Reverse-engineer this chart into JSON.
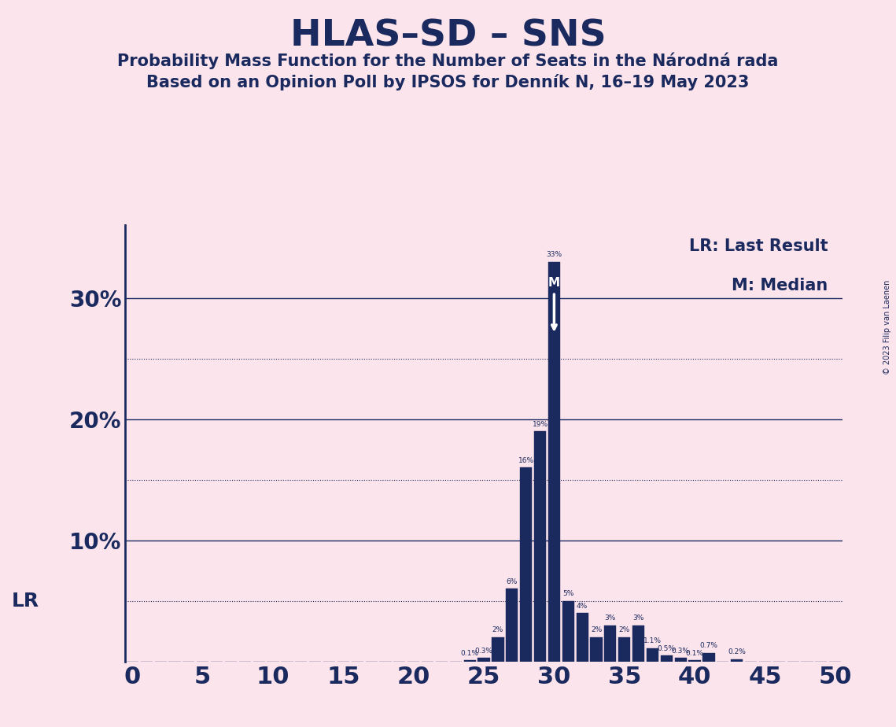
{
  "title": "HLAS–SD – SNS",
  "subtitle1": "Probability Mass Function for the Number of Seats in the Národná rada",
  "subtitle2": "Based on an Opinion Poll by IPSOS for Denník N, 16–19 May 2023",
  "copyright": "© 2023 Filip van Laenen",
  "legend_lr": "LR: Last Result",
  "legend_m": "M: Median",
  "lr_label": "LR",
  "median_seat": 30,
  "background_color": "#fce4ec",
  "bar_color": "#1a2a5e",
  "bar_edge_color": "#1a2a5e",
  "axis_color": "#1a2a5e",
  "text_color": "#1a2a5e",
  "x_min": -0.5,
  "x_max": 50.5,
  "y_min": 0,
  "y_max": 36,
  "ytick_labeled": [
    10,
    20,
    30
  ],
  "ytick_dotted": [
    5,
    15,
    25
  ],
  "xticks": [
    0,
    5,
    10,
    15,
    20,
    25,
    30,
    35,
    40,
    45,
    50
  ],
  "seats": [
    0,
    1,
    2,
    3,
    4,
    5,
    6,
    7,
    8,
    9,
    10,
    11,
    12,
    13,
    14,
    15,
    16,
    17,
    18,
    19,
    20,
    21,
    22,
    23,
    24,
    25,
    26,
    27,
    28,
    29,
    30,
    31,
    32,
    33,
    34,
    35,
    36,
    37,
    38,
    39,
    40,
    41,
    42,
    43,
    44,
    45,
    46,
    47,
    48,
    49,
    50
  ],
  "probs": [
    0,
    0,
    0,
    0,
    0,
    0,
    0,
    0,
    0,
    0,
    0,
    0,
    0,
    0,
    0,
    0,
    0,
    0,
    0,
    0,
    0,
    0,
    0,
    0,
    0.1,
    0.3,
    2,
    6,
    16,
    19,
    33,
    5,
    4,
    2,
    3,
    2,
    3,
    1.1,
    0.5,
    0.3,
    0.1,
    0.7,
    0,
    0.2,
    0,
    0,
    0,
    0,
    0,
    0,
    0
  ],
  "title_fontsize": 34,
  "subtitle_fontsize": 15,
  "ytick_fontsize": 20,
  "xtick_fontsize": 22,
  "bar_label_fontsize": 6.5,
  "legend_fontsize": 15,
  "lr_fontsize": 18
}
